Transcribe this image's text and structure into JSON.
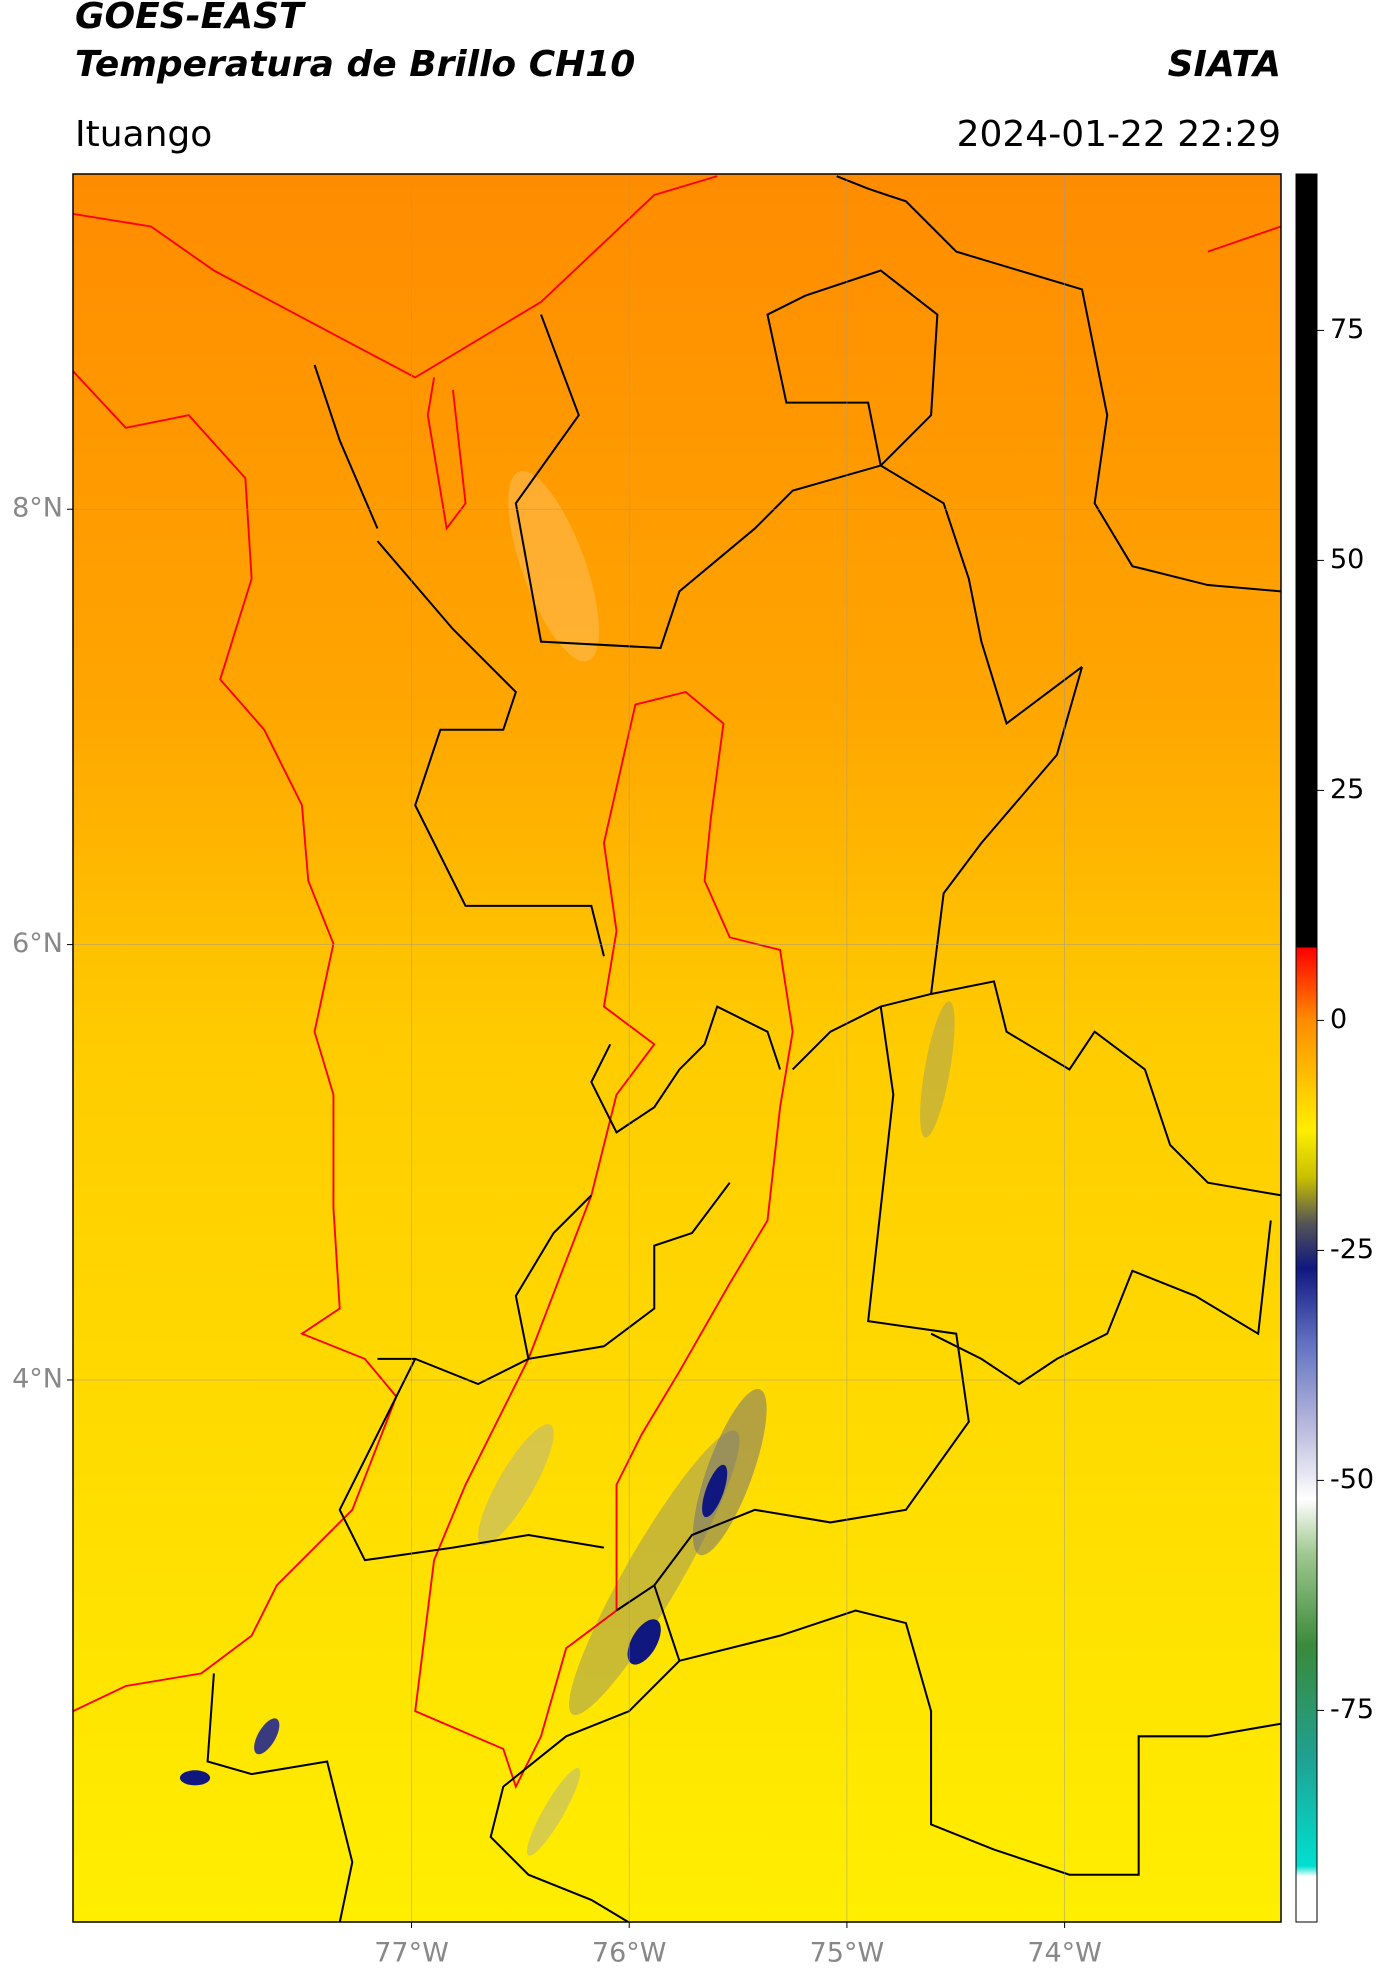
{
  "header": {
    "title": "GOES-EAST",
    "subtitle": "Temperatura de Brillo CH10",
    "source": "SIATA",
    "location": "Ituango",
    "datetime": "2024-01-22 22:29"
  },
  "map": {
    "lonlim": [
      -78.555,
      -73.006
    ],
    "latlim": [
      1.51,
      9.54
    ],
    "lonticks": [
      {
        "value": -77,
        "label": "77°W"
      },
      {
        "value": -76,
        "label": "76°W"
      },
      {
        "value": -75,
        "label": "75°W"
      },
      {
        "value": -74,
        "label": "74°W"
      }
    ],
    "latticks": [
      {
        "value": 8,
        "label": "8°N"
      },
      {
        "value": 6,
        "label": "6°N"
      },
      {
        "value": 4,
        "label": "4°N"
      }
    ]
  },
  "colorbar": {
    "lim": [
      -98,
      92
    ],
    "ticks": [
      75,
      50,
      25,
      0,
      -25,
      -50,
      -75
    ]
  }
}
